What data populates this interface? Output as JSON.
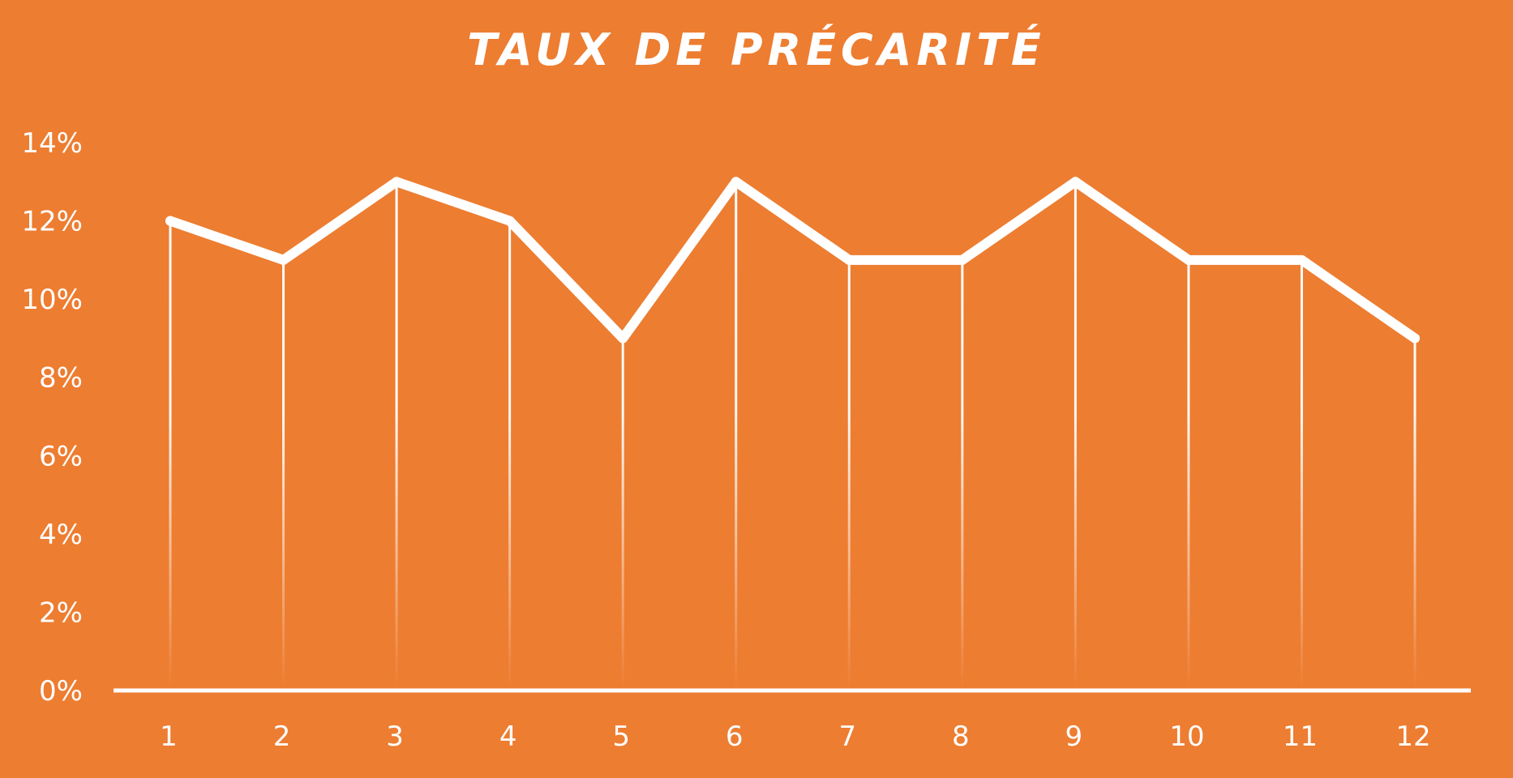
{
  "chart_data": {
    "type": "line",
    "title": "TAUX DE PRÉCARITÉ",
    "xlabel": "",
    "ylabel": "",
    "categories": [
      "1",
      "2",
      "3",
      "4",
      "5",
      "6",
      "7",
      "8",
      "9",
      "10",
      "11",
      "12"
    ],
    "series": [
      {
        "values": [
          12,
          11,
          13,
          12,
          9,
          13,
          11,
          11,
          13,
          11,
          11,
          9
        ]
      }
    ],
    "ylim": [
      0,
      14
    ],
    "yticks": [
      0,
      2,
      4,
      6,
      8,
      10,
      12,
      14
    ],
    "ytick_labels": [
      "0%",
      "2%",
      "4%",
      "6%",
      "8%",
      "10%",
      "12%",
      "14%"
    ],
    "grid": false,
    "drop_lines": true,
    "legend": "none"
  },
  "colors": {
    "background": "#ED7D31",
    "line": "#FFFFFF",
    "text": "#FFFFFF"
  }
}
